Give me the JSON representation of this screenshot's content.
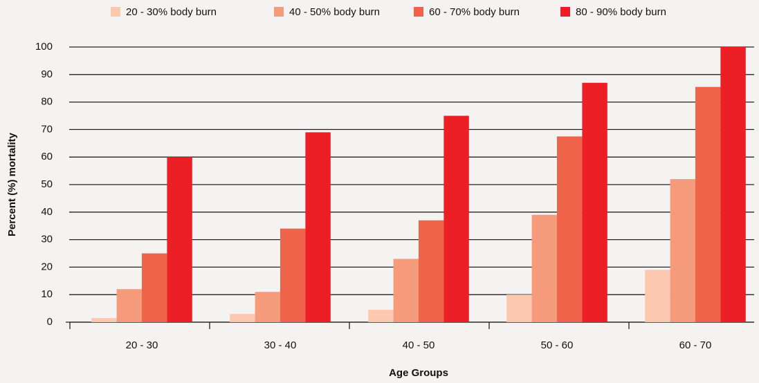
{
  "chart_data": {
    "type": "bar",
    "x_label": "Age Groups",
    "y_label": "Percent (%) mortality",
    "categories": [
      "20 - 30",
      "30 - 40",
      "40 - 50",
      "50 - 60",
      "60 - 70"
    ],
    "series": [
      {
        "name": "20 - 30% body burn",
        "color": "#fcc9b0",
        "values": [
          1.5,
          3,
          4.5,
          10,
          19
        ]
      },
      {
        "name": "40 - 50% body burn",
        "color": "#f59a7a",
        "values": [
          12,
          11,
          23,
          39,
          52
        ]
      },
      {
        "name": "60 - 70% body burn",
        "color": "#ef634a",
        "values": [
          25,
          34,
          37,
          67.5,
          85.5
        ]
      },
      {
        "name": "80 - 90% body burn",
        "color": "#ec1f26",
        "values": [
          60,
          69,
          75,
          87,
          100
        ]
      }
    ],
    "ylim": [
      0,
      100
    ],
    "yticks": [
      0,
      10,
      20,
      30,
      40,
      50,
      60,
      70,
      80,
      90,
      100
    ],
    "grid": true,
    "legend": "top"
  }
}
